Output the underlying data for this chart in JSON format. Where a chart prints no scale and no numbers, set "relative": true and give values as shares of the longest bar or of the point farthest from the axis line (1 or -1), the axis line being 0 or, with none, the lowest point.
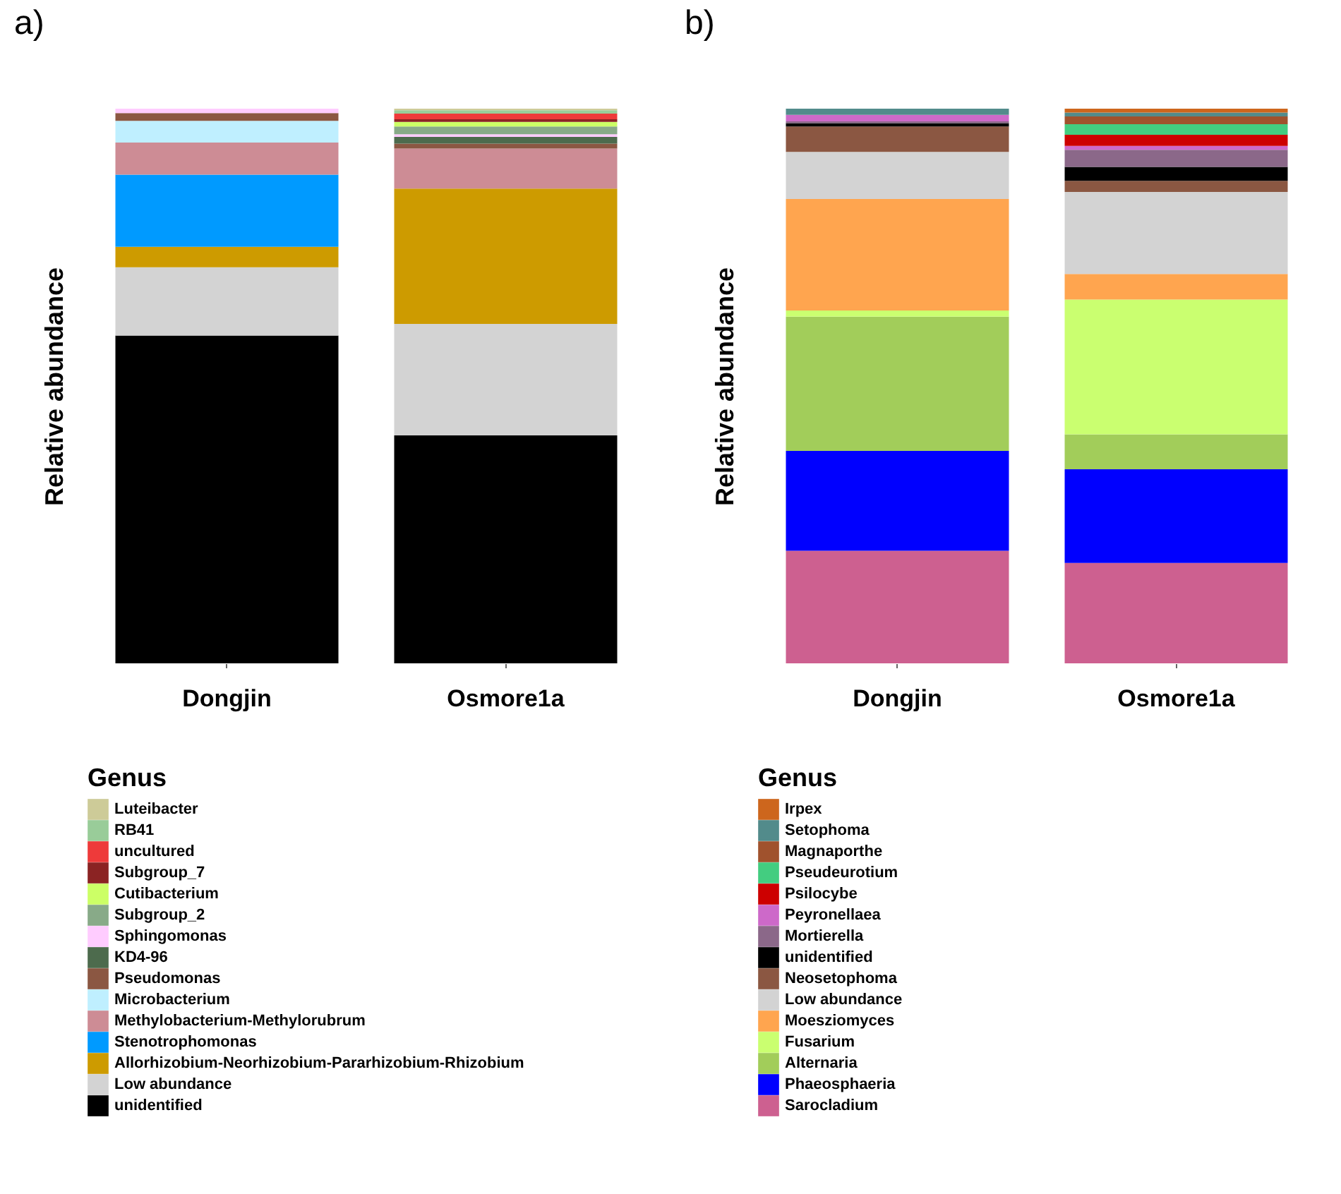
{
  "chart_data": [
    {
      "type": "bar",
      "title": "a)",
      "ylabel": "Relative abundance",
      "legend_title": "Genus",
      "legend": "bottom",
      "stacked": true,
      "relative": true,
      "categories": [
        "Dongjin",
        "Osmore1a"
      ],
      "series": [
        {
          "name": "unidentified",
          "color": "#000000",
          "values": [
            0.591,
            0.411
          ]
        },
        {
          "name": "Low abundance",
          "color": "#d3d3d3",
          "values": [
            0.123,
            0.201
          ]
        },
        {
          "name": "Allorhizobium-Neorhizobium-Pararhizobium-Rhizobium",
          "color": "#cd9b00",
          "values": [
            0.037,
            0.244
          ]
        },
        {
          "name": "Stenotrophomonas",
          "color": "#009aff",
          "values": [
            0.13,
            0
          ]
        },
        {
          "name": "Methylobacterium-Methylorubrum",
          "color": "#cd8c95",
          "values": [
            0.058,
            0.072
          ]
        },
        {
          "name": "Microbacterium",
          "color": "#bfefff",
          "values": [
            0.039,
            0
          ]
        },
        {
          "name": "Pseudomonas",
          "color": "#8b5742",
          "values": [
            0.014,
            0.009
          ]
        },
        {
          "name": "KD4-96",
          "color": "#4d6b4d",
          "values": [
            0,
            0.012
          ]
        },
        {
          "name": "Sphingomonas",
          "color": "#ffccff",
          "values": [
            0.008,
            0.005
          ]
        },
        {
          "name": "Subgroup_2",
          "color": "#88aa88",
          "values": [
            0,
            0.014
          ]
        },
        {
          "name": "Cutibacterium",
          "color": "#ccff66",
          "values": [
            0,
            0.008
          ]
        },
        {
          "name": "Subgroup_7",
          "color": "#8b2323",
          "values": [
            0,
            0.005
          ]
        },
        {
          "name": "uncultured",
          "color": "#ee3a3a",
          "values": [
            0,
            0.01
          ]
        },
        {
          "name": "RB41",
          "color": "#99cc99",
          "values": [
            0,
            0.006
          ]
        },
        {
          "name": "Luteibacter",
          "color": "#cdcb98",
          "values": [
            0,
            0.003
          ]
        }
      ]
    },
    {
      "type": "bar",
      "title": "b)",
      "ylabel": "Relative abundance",
      "legend_title": "Genus",
      "legend": "bottom",
      "stacked": true,
      "relative": true,
      "categories": [
        "Dongjin",
        "Osmore1a"
      ],
      "series": [
        {
          "name": "Sarocladium",
          "color": "#cd6090",
          "values": [
            0.203,
            0.181
          ]
        },
        {
          "name": "Phaeosphaeria",
          "color": "#0000ff",
          "values": [
            0.18,
            0.169
          ]
        },
        {
          "name": "Alternaria",
          "color": "#a2cd5a",
          "values": [
            0.242,
            0.063
          ]
        },
        {
          "name": "Fusarium",
          "color": "#caff70",
          "values": [
            0.011,
            0.243
          ]
        },
        {
          "name": "Moesziomyces",
          "color": "#ffa54f",
          "values": [
            0.201,
            0.046
          ]
        },
        {
          "name": "Low abundance",
          "color": "#d3d3d3",
          "values": [
            0.085,
            0.148
          ]
        },
        {
          "name": "Neosetophoma",
          "color": "#8b5742",
          "values": [
            0.046,
            0.02
          ]
        },
        {
          "name": "unidentified",
          "color": "#000000",
          "values": [
            0.006,
            0.025
          ]
        },
        {
          "name": "Mortierella",
          "color": "#8b6889",
          "values": [
            0.003,
            0.031
          ]
        },
        {
          "name": "Peyronellaea",
          "color": "#cd69c9",
          "values": [
            0.012,
            0.007
          ]
        },
        {
          "name": "Psilocybe",
          "color": "#cd0000",
          "values": [
            0,
            0.02
          ]
        },
        {
          "name": "Pseudeurotium",
          "color": "#43cd80",
          "values": [
            0,
            0.019
          ]
        },
        {
          "name": "Magnaporthe",
          "color": "#a0522d",
          "values": [
            0,
            0.014
          ]
        },
        {
          "name": "Setophoma",
          "color": "#528b8b",
          "values": [
            0.011,
            0.007
          ]
        },
        {
          "name": "Irpex",
          "color": "#cd661d",
          "values": [
            0,
            0.007
          ]
        }
      ]
    }
  ]
}
